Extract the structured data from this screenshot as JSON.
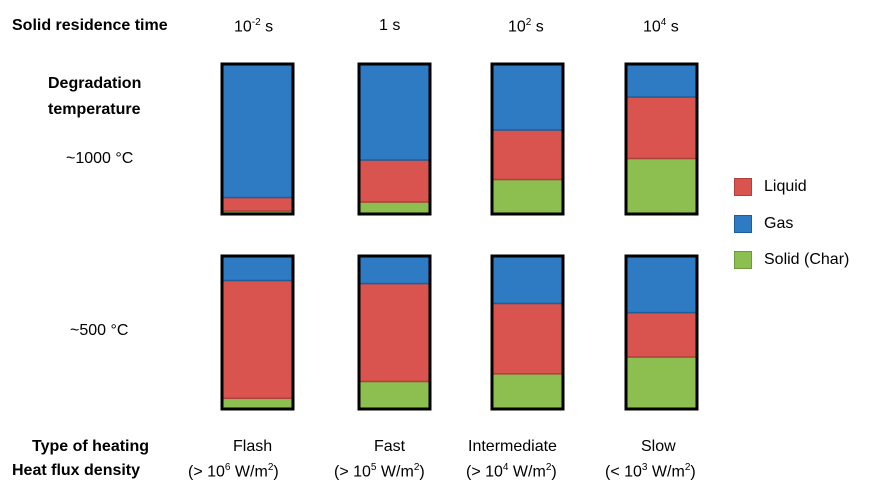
{
  "row_header": "Solid residence time",
  "residence_times": [
    {
      "base": "10",
      "exp": "-2",
      "unit": " s"
    },
    {
      "base": "1 s",
      "exp": "",
      "unit": ""
    },
    {
      "base": "10",
      "exp": "2",
      "unit": " s"
    },
    {
      "base": "10",
      "exp": "4",
      "unit": " s"
    }
  ],
  "degradation_label_line1": "Degradation",
  "degradation_label_line2": "temperature",
  "temperatures": [
    "~1000 °C",
    "~500 °C"
  ],
  "type_label": "Type of heating",
  "flux_label": "Heat flux density",
  "heating_types": [
    "Flash",
    "Fast",
    "Intermediate",
    "Slow"
  ],
  "flux_values": [
    {
      "pre": "(> 10",
      "exp": "6",
      "post": " W/m",
      "exp2": "2",
      "close": ")"
    },
    {
      "pre": "(> 10",
      "exp": "5",
      "post": " W/m",
      "exp2": "2",
      "close": ")"
    },
    {
      "pre": "(> 10",
      "exp": "4",
      "post": " W/m",
      "exp2": "2",
      "close": ")"
    },
    {
      "pre": "(< 10",
      "exp": "3",
      "post": " W/m",
      "exp2": "2",
      "close": ")"
    }
  ],
  "legend": [
    {
      "label": "Liquid",
      "color": "#d9534f"
    },
    {
      "label": "Gas",
      "color": "#2e7bc4"
    },
    {
      "label": "Solid (Char)",
      "color": "#8cbf4f"
    }
  ],
  "chart_data": {
    "type": "bar",
    "stacked": true,
    "unit": "fraction of product",
    "categories": [
      "Flash",
      "Fast",
      "Intermediate",
      "Slow"
    ],
    "stack_order_bottom_to_top": [
      "Solid (Char)",
      "Liquid",
      "Gas"
    ],
    "panels": [
      {
        "temperature": "~1000 °C",
        "series": [
          {
            "name": "Solid (Char)",
            "values": [
              0.02,
              0.08,
              0.23,
              0.37
            ]
          },
          {
            "name": "Liquid",
            "values": [
              0.09,
              0.28,
              0.33,
              0.41
            ]
          },
          {
            "name": "Gas",
            "values": [
              0.89,
              0.64,
              0.44,
              0.22
            ]
          }
        ]
      },
      {
        "temperature": "~500 °C",
        "series": [
          {
            "name": "Solid (Char)",
            "values": [
              0.07,
              0.18,
              0.23,
              0.34
            ]
          },
          {
            "name": "Liquid",
            "values": [
              0.77,
              0.64,
              0.46,
              0.29
            ]
          },
          {
            "name": "Gas",
            "values": [
              0.16,
              0.18,
              0.31,
              0.37
            ]
          }
        ]
      }
    ]
  }
}
